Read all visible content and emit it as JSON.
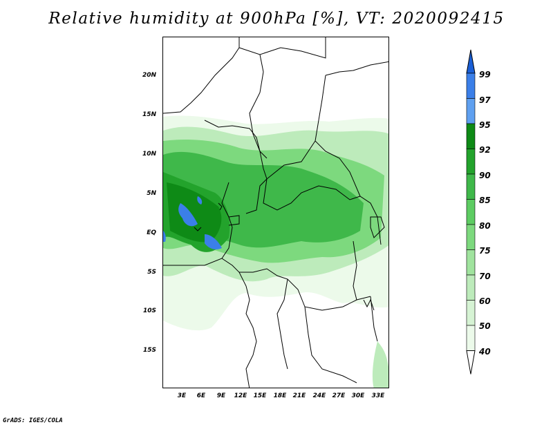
{
  "title": "Relative humidity at 900hPa [%], VT: 2020092415",
  "credit": "GrADS: IGES/COLA",
  "lat_labels": [
    "20N",
    "15N",
    "10N",
    "5N",
    "EQ",
    "5S",
    "10S",
    "15S"
  ],
  "lon_labels": [
    "3E",
    "6E",
    "9E",
    "12E",
    "15E",
    "18E",
    "21E",
    "24E",
    "27E",
    "30E",
    "33E"
  ],
  "colorbar": {
    "labels": [
      "99",
      "97",
      "95",
      "92",
      "90",
      "85",
      "80",
      "75",
      "70",
      "60",
      "50",
      "40"
    ],
    "colors": [
      "#1a5fd6",
      "#3b7fe8",
      "#5fa0f0",
      "#0e8a16",
      "#23a32c",
      "#3fb84a",
      "#5dcc62",
      "#7dd97e",
      "#a0e39e",
      "#bdebbb",
      "#d6f3d4",
      "#ecfaea",
      "#ffffff"
    ]
  },
  "map": {
    "region": "Central Africa",
    "variable": "Relative humidity",
    "level": "900hPa",
    "unit": "%",
    "valid_time": "2020092415"
  }
}
